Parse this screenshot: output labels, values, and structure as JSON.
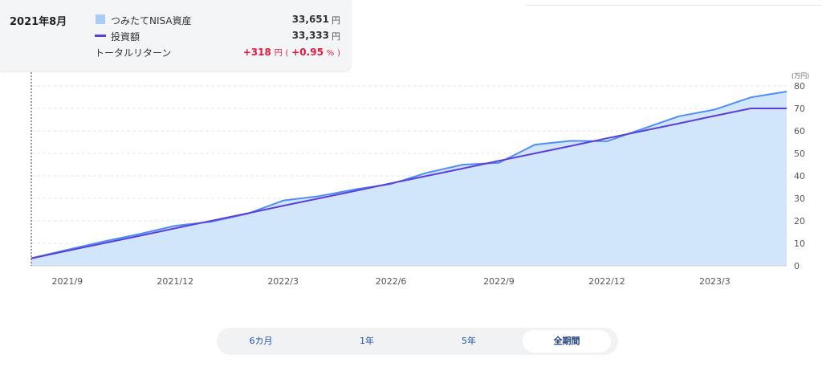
{
  "chart_data": {
    "type": "area",
    "x": [
      "2021/8",
      "2021/9",
      "2021/10",
      "2021/11",
      "2021/12",
      "2022/1",
      "2022/2",
      "2022/3",
      "2022/4",
      "2022/5",
      "2022/6",
      "2022/7",
      "2022/8",
      "2022/9",
      "2022/10",
      "2022/11",
      "2022/12",
      "2023/1",
      "2023/2",
      "2023/3",
      "2023/4",
      "2023/5"
    ],
    "x_tick_labels": [
      "2021/9",
      "2021/12",
      "2022/3",
      "2022/6",
      "2022/9",
      "2022/12",
      "2023/3"
    ],
    "series": [
      {
        "name": "つみたてNISA資産",
        "kind": "area",
        "color": "#4e8ef7",
        "fill": "#d2e6fb",
        "values": [
          3.4,
          7.1,
          10.8,
          14.1,
          17.8,
          19.6,
          23.1,
          29.0,
          31.0,
          34.0,
          36.4,
          41.4,
          45.0,
          45.8,
          53.9,
          55.6,
          55.4,
          60.9,
          66.5,
          69.5,
          74.9,
          77.5
        ]
      },
      {
        "name": "投資額",
        "kind": "line",
        "color": "#5b3fd8",
        "values": [
          3.3,
          6.7,
          10.0,
          13.3,
          16.7,
          20.0,
          23.3,
          26.7,
          30.0,
          33.3,
          36.7,
          40.0,
          43.3,
          46.7,
          50.0,
          53.3,
          56.7,
          60.0,
          63.3,
          66.7,
          70.0,
          70.0
        ]
      }
    ],
    "ylim": [
      0,
      80
    ],
    "y_ticks": [
      0,
      10,
      20,
      30,
      40,
      50,
      60,
      70,
      80
    ],
    "y_tick_labels": [
      "0",
      "10",
      "20",
      "30",
      "40",
      "50",
      "60",
      "70",
      "80"
    ],
    "y_unit": "(万円)",
    "grid": true
  },
  "tooltip": {
    "date": "2021年8月",
    "asset_label": "つみたてNISA資産",
    "asset_value": "33,651",
    "invest_label": "投資額",
    "invest_value": "33,333",
    "unit": "円",
    "return_label": "トータルリターン",
    "return_value": "+318",
    "return_pct": "+0.95",
    "return_open": "(",
    "return_close": ")",
    "pct_sign": "%",
    "colors": {
      "asset": "#a9ccf7",
      "invest": "#5b3fd8",
      "return": "#e5173f"
    }
  },
  "period_tabs": [
    {
      "label": "6カ月",
      "active": false
    },
    {
      "label": "1年",
      "active": false
    },
    {
      "label": "5年",
      "active": false
    },
    {
      "label": "全期間",
      "active": true
    }
  ]
}
